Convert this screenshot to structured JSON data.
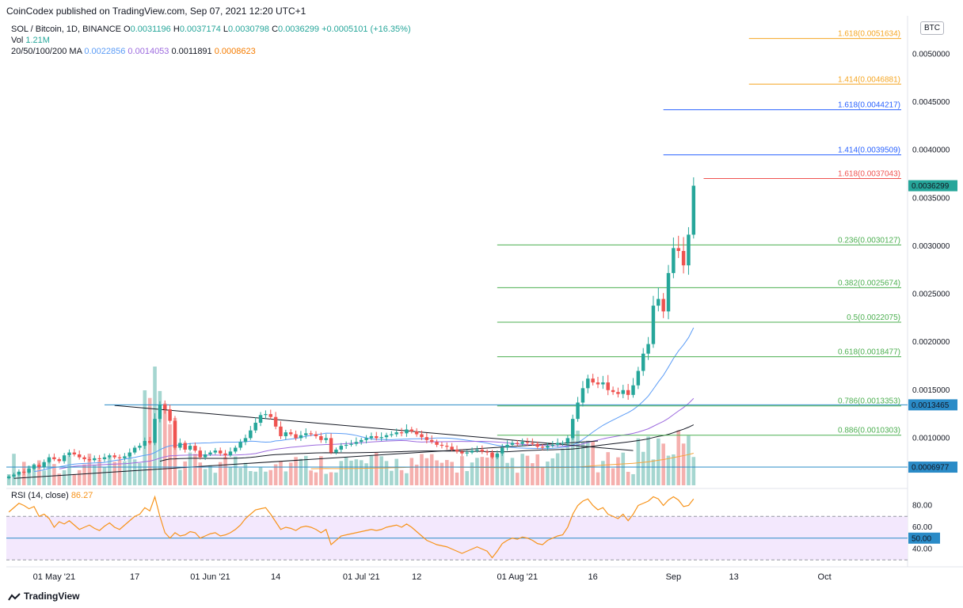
{
  "header": {
    "publisher_line": "CoinCodex published on TradingView.com, Sep 07, 2021 12:20 UTC+1"
  },
  "legend": {
    "symbol": "SOL / Bitcoin, 1D, BINANCE",
    "o_label": "O",
    "o_value": "0.0031196",
    "h_label": "H",
    "h_value": "0.0037174",
    "l_label": "L",
    "l_value": "0.0030798",
    "c_label": "C",
    "c_value": "0.0036299",
    "change": "+0.0005101 (+16.35%)",
    "vol_label": "Vol",
    "vol_value": "1.21M",
    "ma_label": "20/50/100/200 MA",
    "ma20": "0.0022856",
    "ma50": "0.0014053",
    "ma100": "0.0011891",
    "ma200": "0.0008623"
  },
  "currency_badge": "BTC",
  "colors": {
    "up": "#26a69a",
    "down": "#ef5350",
    "ma20": "#5b9cf6",
    "ma50": "#9c6ade",
    "ma100": "#131722",
    "ma200": "#f5a33b",
    "fib_green": "#4caf50",
    "fib_blue": "#2962ff",
    "fib_orange": "#f5a623",
    "fib_red": "#ef5350",
    "hline": "#2a8bc7",
    "rsi_line": "#f7931a",
    "rsi_band": "#f3e8fd"
  },
  "chart_data": {
    "type": "candlestick",
    "title": "SOL / Bitcoin, 1D, BINANCE",
    "ylim": [
      0.0005,
      0.0054
    ],
    "y_ticks": [
      "0.0050000",
      "0.0045000",
      "0.0040000",
      "0.0035000",
      "0.0030000",
      "0.0025000",
      "0.0020000",
      "0.0015000",
      "0.0010000"
    ],
    "y_tick_values": [
      0.005,
      0.0045,
      0.004,
      0.0035,
      0.003,
      0.0025,
      0.002,
      0.0015,
      0.001
    ],
    "x_ticks": [
      "01 May '21",
      "17",
      "01 Jun '21",
      "14",
      "01 Jul '21",
      "12",
      "01 Aug '21",
      "16",
      "Sep",
      "13",
      "Oct"
    ],
    "x_tick_days": [
      0,
      16,
      31,
      44,
      61,
      72,
      92,
      107,
      123,
      135,
      153
    ],
    "first_day": -9,
    "closes": [
      0.0006,
      0.00062,
      0.00065,
      0.00064,
      0.00068,
      0.00072,
      0.0007,
      0.00075,
      0.0008,
      0.00078,
      0.00076,
      0.00082,
      0.00085,
      0.00083,
      0.0008,
      0.00078,
      0.00077,
      0.00079,
      0.00078,
      0.0008,
      0.00082,
      0.0008,
      0.00079,
      0.00081,
      0.00085,
      0.0009,
      0.00092,
      0.00097,
      0.00095,
      0.0012,
      0.00135,
      0.0013,
      0.00118,
      0.0009,
      0.00095,
      0.00088,
      0.00092,
      0.00087,
      0.0008,
      0.00083,
      0.00085,
      0.00087,
      0.00084,
      0.00082,
      0.00086,
      0.0009,
      0.00096,
      0.001,
      0.00108,
      0.00116,
      0.00124,
      0.00125,
      0.00122,
      0.00112,
      0.00102,
      0.00106,
      0.00104,
      0.001,
      0.00103,
      0.00105,
      0.00104,
      0.00102,
      0.00098,
      0.001,
      0.00085,
      0.00088,
      0.00092,
      0.00093,
      0.00094,
      0.00096,
      0.00098,
      0.001,
      0.00102,
      0.001,
      0.00101,
      0.00103,
      0.00104,
      0.00106,
      0.00105,
      0.00109,
      0.00107,
      0.00104,
      0.00101,
      0.00098,
      0.00096,
      0.00093,
      0.00092,
      0.00091,
      0.00088,
      0.00086,
      0.00084,
      0.00085,
      0.00087,
      0.00088,
      0.00086,
      0.00085,
      0.0008,
      0.00084,
      0.0009,
      0.00093,
      0.00095,
      0.00094,
      0.00096,
      0.00095,
      0.00094,
      0.00091,
      0.0009,
      0.00092,
      0.00093,
      0.00095,
      0.00095,
      0.001,
      0.0012,
      0.00137,
      0.00152,
      0.00162,
      0.00158,
      0.00156,
      0.00158,
      0.0015,
      0.00148,
      0.00146,
      0.0015,
      0.00145,
      0.00155,
      0.0017,
      0.00188,
      0.00198,
      0.00238,
      0.00245,
      0.00232,
      0.00272,
      0.00298,
      0.00295,
      0.0028,
      0.00312,
      0.00363
    ],
    "ma20_last": 0.0022856,
    "ma50_last": 0.0014053,
    "ma100_last": 0.0011891,
    "ma200_last": 0.0008623,
    "current_price_label": "0.0036299",
    "hline_label": "0.0013465",
    "hline_value": 0.0013465,
    "support_label": "0.0006977",
    "support_value": 0.0006977,
    "fib_levels": [
      {
        "label": "1.618(0.0051634)",
        "value": 0.0051634,
        "color": "#f5a623"
      },
      {
        "label": "1.414(0.0046881)",
        "value": 0.0046881,
        "color": "#f5a623"
      },
      {
        "label": "1.618(0.0044217)",
        "value": 0.0044217,
        "color": "#2962ff"
      },
      {
        "label": "1.414(0.0039509)",
        "value": 0.0039509,
        "color": "#2962ff"
      },
      {
        "label": "1.618(0.0037043)",
        "value": 0.0037043,
        "color": "#ef5350"
      },
      {
        "label": "0.236(0.0030127)",
        "value": 0.0030127,
        "color": "#4caf50"
      },
      {
        "label": "0.382(0.0025674)",
        "value": 0.0025674,
        "color": "#4caf50"
      },
      {
        "label": "0.5(0.0022075)",
        "value": 0.0022075,
        "color": "#4caf50"
      },
      {
        "label": "0.618(0.0018477)",
        "value": 0.0018477,
        "color": "#4caf50"
      },
      {
        "label": "0.786(0.0013353)",
        "value": 0.0013353,
        "color": "#4caf50"
      },
      {
        "label": "0.886(0.0010303)",
        "value": 0.0010303,
        "color": "#4caf50"
      }
    ],
    "rsi": {
      "label": "RSI (14, close)",
      "value": "86.27",
      "ticks": [
        "80.00",
        "60.00",
        "40.00"
      ],
      "tick_values": [
        80,
        60,
        40
      ],
      "mid_label": "50.00",
      "ylim": [
        28,
        92
      ],
      "values": [
        74,
        78,
        82,
        80,
        77,
        79,
        70,
        72,
        68,
        60,
        65,
        63,
        66,
        62,
        58,
        60,
        62,
        59,
        57,
        61,
        64,
        60,
        58,
        62,
        66,
        70,
        72,
        78,
        75,
        88,
        70,
        55,
        50,
        55,
        52,
        53,
        56,
        55,
        50,
        52,
        54,
        55,
        52,
        53,
        55,
        58,
        62,
        68,
        72,
        76,
        77,
        78,
        72,
        65,
        58,
        60,
        59,
        57,
        60,
        61,
        60,
        58,
        55,
        58,
        44,
        48,
        52,
        53,
        54,
        55,
        56,
        57,
        58,
        57,
        58,
        60,
        61,
        62,
        60,
        63,
        60,
        56,
        52,
        48,
        46,
        44,
        43,
        42,
        40,
        38,
        36,
        38,
        40,
        42,
        40,
        38,
        32,
        38,
        45,
        48,
        50,
        49,
        51,
        50,
        48,
        45,
        44,
        48,
        50,
        52,
        53,
        60,
        72,
        80,
        84,
        86,
        80,
        76,
        78,
        72,
        70,
        68,
        72,
        66,
        72,
        80,
        82,
        84,
        88,
        86,
        80,
        85,
        88,
        85,
        79,
        80,
        86
      ]
    }
  }
}
